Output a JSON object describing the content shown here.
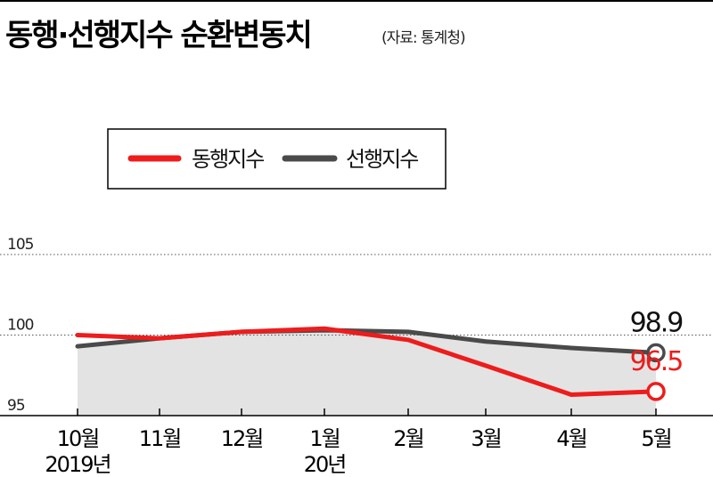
{
  "title": "동행·선행지수 순환변동치",
  "source": "(자료: 통계청)",
  "colors": {
    "coincident": "#ee1c1c",
    "leading": "#4a4a4a",
    "area": "#e3e3e3",
    "grid": "#555555"
  },
  "chart_data": {
    "type": "line",
    "title": "동행·선행지수 순환변동치",
    "xlabel": "",
    "ylabel": "",
    "ylim": [
      95,
      105
    ],
    "yticks": [
      105,
      100,
      95
    ],
    "categories": [
      "10월",
      "11월",
      "12월",
      "1월",
      "2월",
      "3월",
      "4월",
      "5월"
    ],
    "year_labels": [
      {
        "index": 0,
        "label": "2019년"
      },
      {
        "index": 3,
        "label": "20년"
      }
    ],
    "series": [
      {
        "name": "동행지수",
        "values": [
          100.0,
          99.8,
          100.2,
          100.4,
          99.7,
          98.1,
          96.3,
          96.5
        ],
        "end_label": "96.5"
      },
      {
        "name": "선행지수",
        "values": [
          99.3,
          99.8,
          100.2,
          100.3,
          100.2,
          99.6,
          99.2,
          98.9
        ],
        "end_label": "98.9"
      }
    ],
    "legend": "top-left",
    "grid": "dotted lines at 105 and 100"
  }
}
